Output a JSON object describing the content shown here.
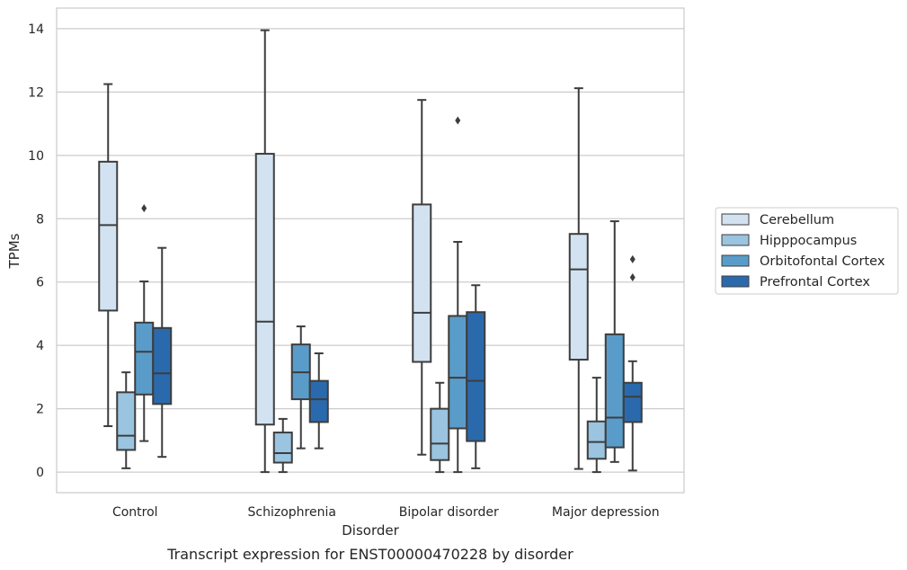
{
  "caption": "Transcript expression for ENST00000470228 by disorder",
  "chart_data": {
    "type": "box",
    "xlabel": "Disorder",
    "ylabel": "TPMs",
    "ylim": [
      -0.65,
      14.65
    ],
    "yticks": [
      0,
      2,
      4,
      6,
      8,
      10,
      12,
      14
    ],
    "grid": "horizontal",
    "legend_position": "right",
    "categories": [
      "Control",
      "Schizophrenia",
      "Bipolar disorder",
      "Major depression"
    ],
    "series": [
      {
        "name": "Cerebellum",
        "color": "#d2e2f1",
        "boxes": [
          {
            "whisker_low": 1.45,
            "q1": 5.1,
            "median": 7.8,
            "q3": 9.8,
            "whisker_high": 12.25,
            "outliers": []
          },
          {
            "whisker_low": 0.0,
            "q1": 1.5,
            "median": 4.75,
            "q3": 10.05,
            "whisker_high": 13.95,
            "outliers": []
          },
          {
            "whisker_low": 0.55,
            "q1": 3.48,
            "median": 5.03,
            "q3": 8.45,
            "whisker_high": 11.75,
            "outliers": []
          },
          {
            "whisker_low": 0.1,
            "q1": 3.55,
            "median": 6.4,
            "q3": 7.52,
            "whisker_high": 12.12,
            "outliers": []
          }
        ]
      },
      {
        "name": "Hipppocampus",
        "color": "#9ac4df",
        "boxes": [
          {
            "whisker_low": 0.12,
            "q1": 0.7,
            "median": 1.15,
            "q3": 2.52,
            "whisker_high": 3.15,
            "outliers": []
          },
          {
            "whisker_low": 0.0,
            "q1": 0.3,
            "median": 0.6,
            "q3": 1.25,
            "whisker_high": 1.68,
            "outliers": []
          },
          {
            "whisker_low": 0.0,
            "q1": 0.38,
            "median": 0.9,
            "q3": 2.0,
            "whisker_high": 2.82,
            "outliers": []
          },
          {
            "whisker_low": 0.0,
            "q1": 0.42,
            "median": 0.95,
            "q3": 1.6,
            "whisker_high": 2.98,
            "outliers": []
          }
        ]
      },
      {
        "name": "Orbitofontal Cortex",
        "color": "#5a9cc9",
        "boxes": [
          {
            "whisker_low": 0.98,
            "q1": 2.45,
            "median": 3.8,
            "q3": 4.72,
            "whisker_high": 6.02,
            "outliers": [
              8.33
            ]
          },
          {
            "whisker_low": 0.75,
            "q1": 2.3,
            "median": 3.15,
            "q3": 4.03,
            "whisker_high": 4.6,
            "outliers": []
          },
          {
            "whisker_low": 0.0,
            "q1": 1.38,
            "median": 2.98,
            "q3": 4.93,
            "whisker_high": 7.27,
            "outliers": [
              11.1
            ]
          },
          {
            "whisker_low": 0.32,
            "q1": 0.78,
            "median": 1.72,
            "q3": 4.35,
            "whisker_high": 7.92,
            "outliers": []
          }
        ]
      },
      {
        "name": "Prefrontal Cortex",
        "color": "#2a6aac",
        "boxes": [
          {
            "whisker_low": 0.48,
            "q1": 2.15,
            "median": 3.12,
            "q3": 4.55,
            "whisker_high": 7.08,
            "outliers": []
          },
          {
            "whisker_low": 0.75,
            "q1": 1.58,
            "median": 2.3,
            "q3": 2.88,
            "whisker_high": 3.75,
            "outliers": []
          },
          {
            "whisker_low": 0.12,
            "q1": 0.98,
            "median": 2.88,
            "q3": 5.05,
            "whisker_high": 5.9,
            "outliers": []
          },
          {
            "whisker_low": 0.05,
            "q1": 1.58,
            "median": 2.38,
            "q3": 2.82,
            "whisker_high": 3.5,
            "outliers": [
              6.15,
              6.72
            ]
          }
        ]
      }
    ]
  }
}
